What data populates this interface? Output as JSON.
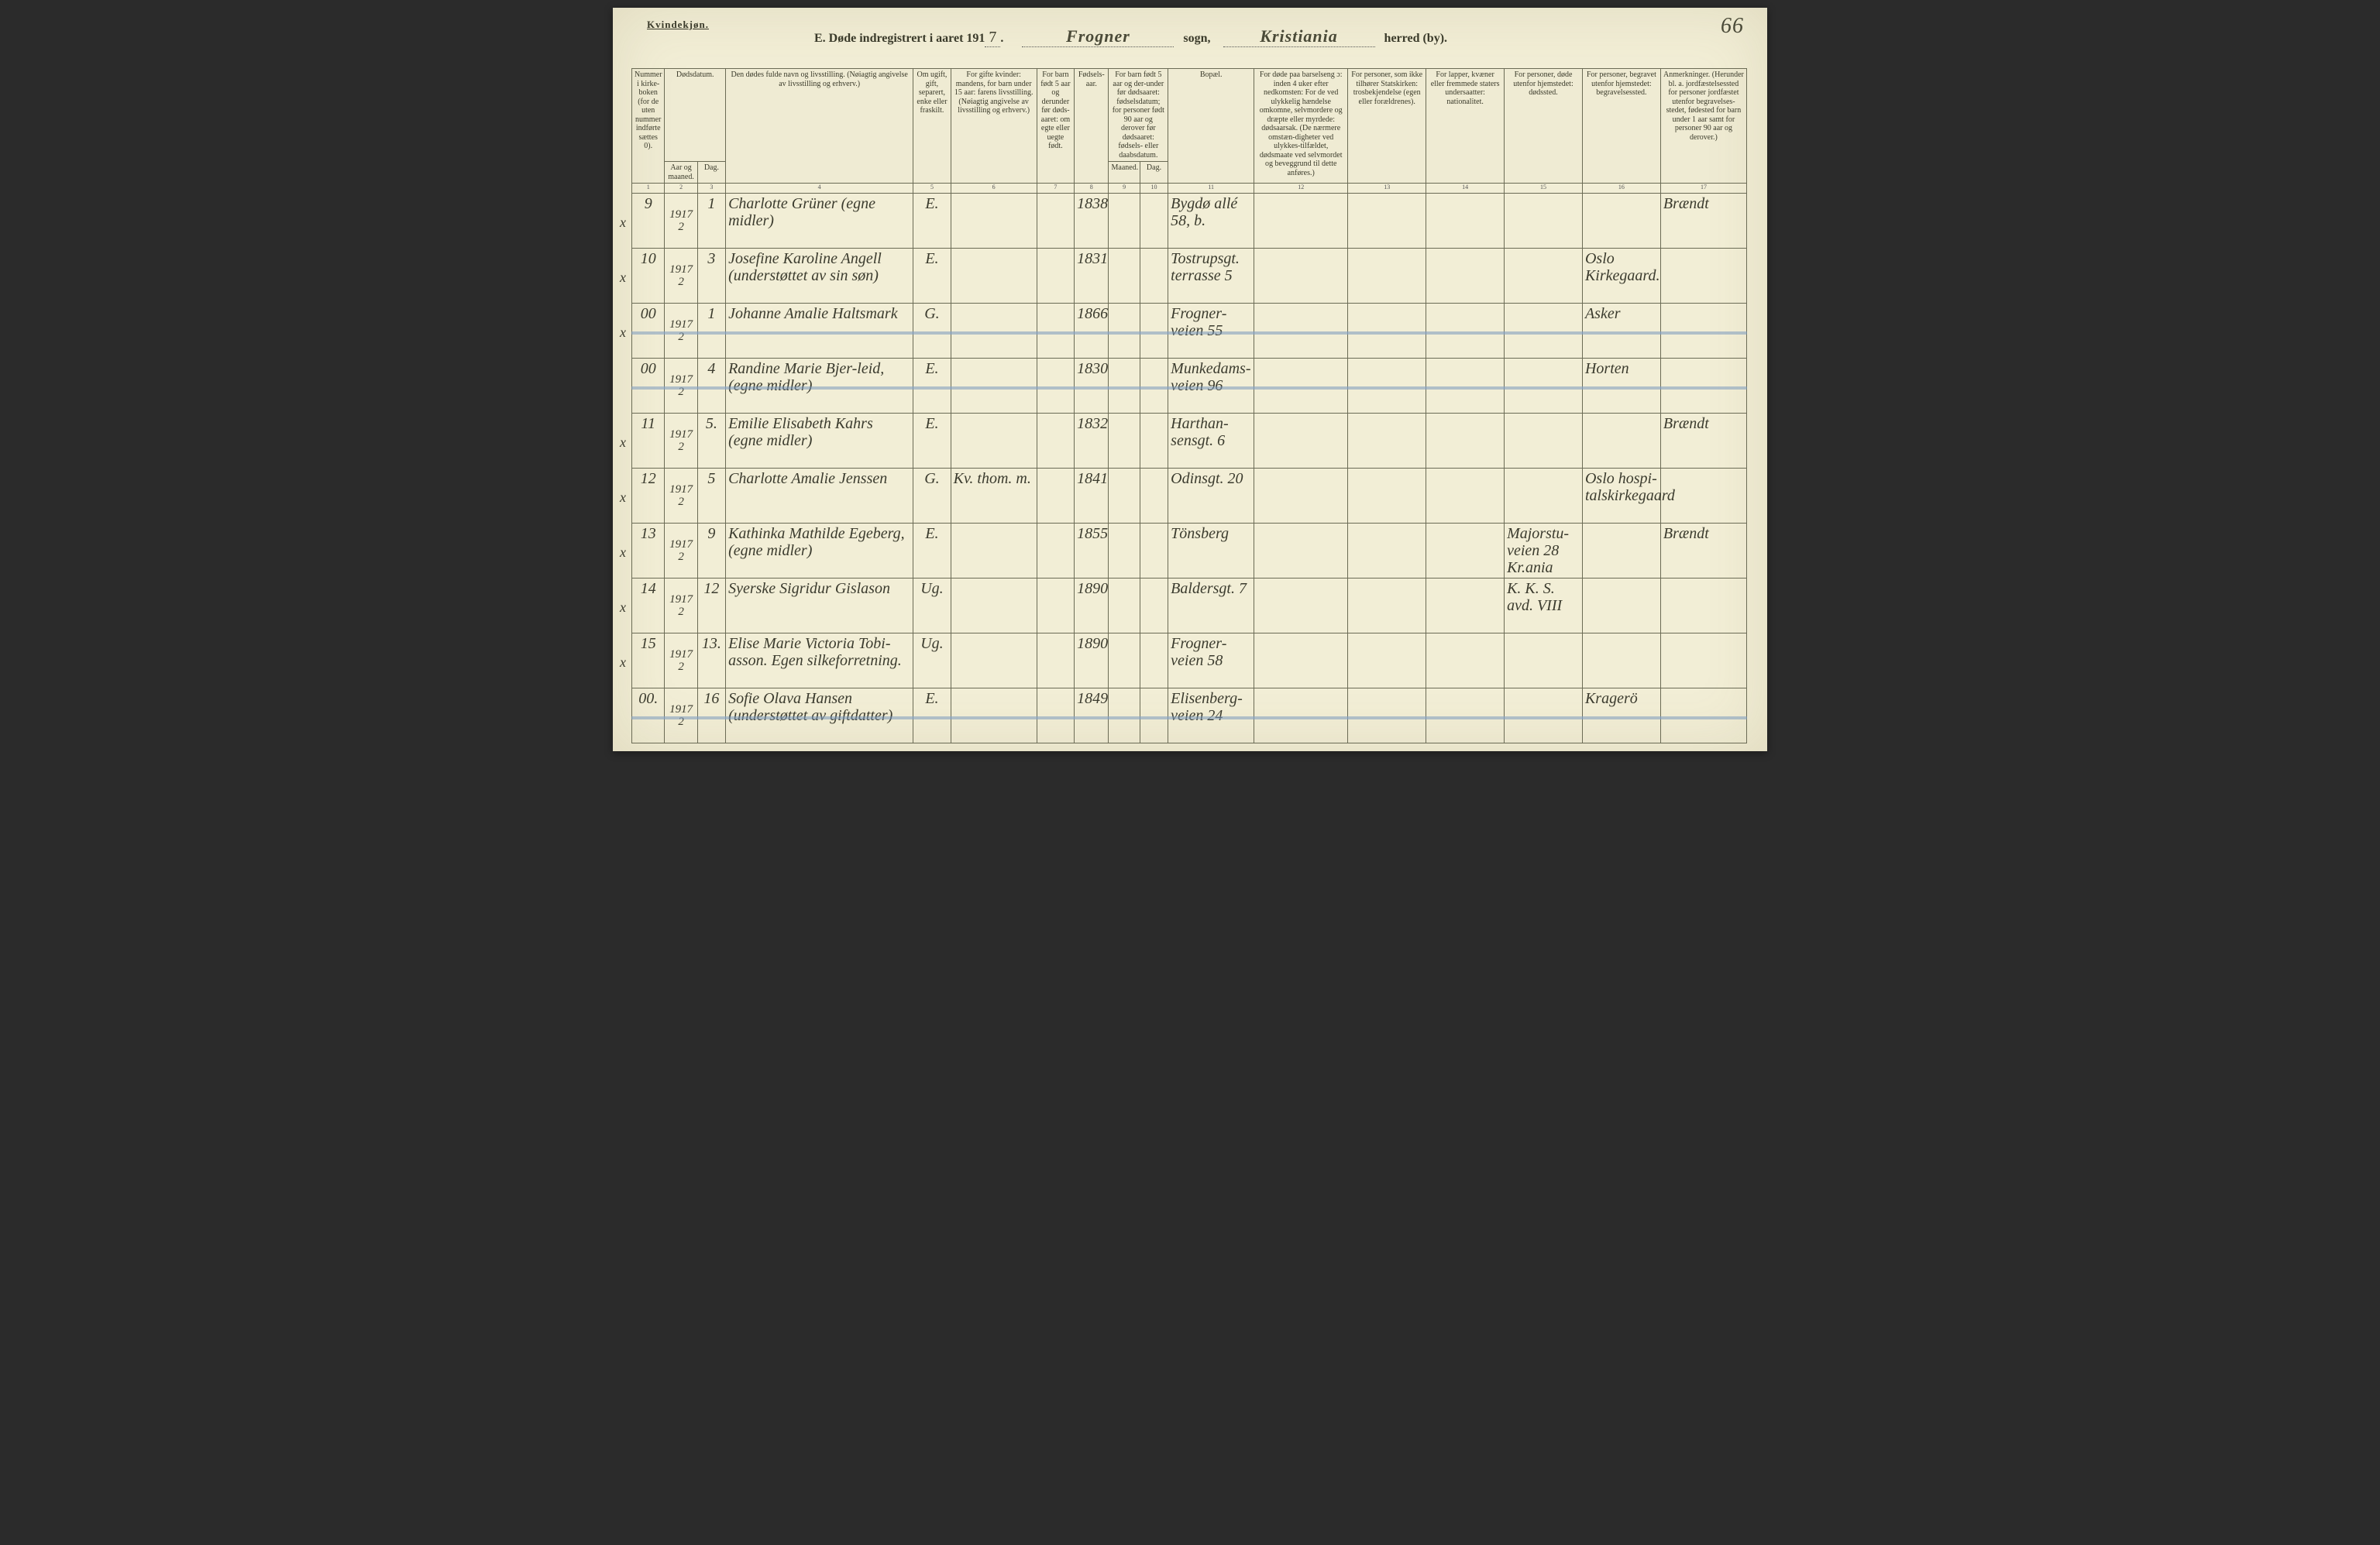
{
  "page_bg": "#f2eed6",
  "ink": "#3a3a2a",
  "cursive_font": "Brush Script MT",
  "header": {
    "gender": "Kvindekjøn.",
    "title_prefix": "E.   Døde indregistrert i aaret 191",
    "year_digit": "7",
    "sogn_label": "sogn,",
    "sogn_value": "Frogner",
    "herred_label": "herred (by).",
    "herred_value": "Kristiania",
    "page_number": "66"
  },
  "columns": {
    "c1": "Nummer i kirke-boken (for de uten nummer indførte sættes 0).",
    "c2_top": "Dødsdatum.",
    "c2": "Aar og maaned.",
    "c3": "Dag.",
    "c4": "Den dødes fulde navn og livsstilling. (Nøiagtig angivelse av livsstilling og erhverv.)",
    "c5": "Om ugift, gift, separert, enke eller fraskilt.",
    "c6": "For gifte kvinder: mandens, for barn under 15 aar: farens livsstilling. (Nøiagtig angivelse av livsstilling og erhverv.)",
    "c7": "For barn født 5 aar og derunder før døds-aaret: om egte eller uegte født.",
    "c8": "Fødsels-aar.",
    "c9_top": "For barn født 5 aar og der-under før dødsaaret: fødselsdatum; for personer født 90 aar og derover før dødsaaret: fødsels- eller daabsdatum.",
    "c9": "Maaned.",
    "c10": "Dag.",
    "c11": "Bopæl.",
    "c12": "For døde paa barselseng ɔ: inden 4 uker efter nedkomsten: For de ved ulykkelig hændelse omkomne, selvmordere og dræpte eller myrdede: dødsaarsak. (De nærmere omstæn-digheter ved ulykkes-tilfældet, dødsmaate ved selvmordet og beveggrund til dette anføres.)",
    "c13": "For personer, som ikke tilhører Statskirken: trosbekjendelse (egen eller forældrenes).",
    "c14": "For lapper, kvæner eller fremmede staters undersaatter: nationalitet.",
    "c15": "For personer, døde utenfor hjemstedet: dødssted.",
    "c16": "For personer, begravet utenfor hjemstedet: begravelsessted.",
    "c17": "Anmerkninger. (Herunder bl. a. jordfæstelsessted for personer jordfæstet utenfor begravelses-stedet, fødested for barn under 1 aar samt for personer 90 aar og derover.)"
  },
  "col_numbers": [
    "1",
    "2",
    "3",
    "4",
    "5",
    "6",
    "7",
    "8",
    "9",
    "10",
    "11",
    "12",
    "13",
    "14",
    "15",
    "16",
    "17"
  ],
  "rows": [
    {
      "mark": "x",
      "num": "9",
      "year": "1917",
      "month": "2",
      "day": "1",
      "name": "Charlotte Grüner (egne midler)",
      "status": "E.",
      "fodselsaar": "1838",
      "bopael": "Bygdø allé 58, b.",
      "c17": "Brændt",
      "strike": false
    },
    {
      "mark": "x",
      "num": "10",
      "year": "1917",
      "month": "2",
      "day": "3",
      "name": "Josefine Karoline Angell (understøttet av sin søn)",
      "status": "E.",
      "fodselsaar": "1831",
      "bopael": "Tostrupsgt. terrasse 5",
      "c16": "Oslo Kirkegaard.",
      "strike": false
    },
    {
      "mark": "x",
      "num": "00",
      "year": "1917",
      "month": "2",
      "day": "1",
      "name": "Johanne Amalie Haltsmark",
      "status": "G.",
      "fodselsaar": "1866",
      "bopael": "Frogner-veien 55",
      "c16": "Asker",
      "strike": true
    },
    {
      "mark": "",
      "num": "00",
      "year": "1917",
      "month": "2",
      "day": "4",
      "name": "Randine Marie Bjer-leid, (egne midler)",
      "status": "E.",
      "fodselsaar": "1830",
      "bopael": "Munkedams-veien 96",
      "c16": "Horten",
      "strike": true
    },
    {
      "mark": "x",
      "num": "11",
      "year": "1917",
      "month": "2",
      "day": "5.",
      "name": "Emilie Elisabeth Kahrs (egne midler)",
      "status": "E.",
      "fodselsaar": "1832",
      "bopael": "Harthan-sensgt. 6",
      "c17": "Brændt",
      "strike": false
    },
    {
      "mark": "x",
      "num": "12",
      "year": "1917",
      "month": "2",
      "day": "5",
      "name": "Charlotte Amalie Jenssen",
      "status": "G.",
      "c6": "Kv. thom. m.",
      "fodselsaar": "1841",
      "bopael": "Odinsgt. 20",
      "c16": "Oslo hospi-talskirkegaard",
      "strike": false
    },
    {
      "mark": "x",
      "num": "13",
      "year": "1917",
      "month": "2",
      "day": "9",
      "name": "Kathinka Mathilde Egeberg, (egne midler)",
      "status": "E.",
      "fodselsaar": "1855",
      "bopael": "Tönsberg",
      "c15": "Majorstu-veien 28 Kr.ania",
      "c17": "Brændt",
      "strike": false
    },
    {
      "mark": "x",
      "num": "14",
      "year": "1917",
      "month": "2",
      "day": "12",
      "name": "Syerske Sigridur Gislason",
      "status": "Ug.",
      "fodselsaar": "1890",
      "bopael": "Baldersgt. 7",
      "c15": "K. K. S. avd. VIII",
      "strike": false
    },
    {
      "mark": "x",
      "num": "15",
      "year": "1917",
      "month": "2",
      "day": "13.",
      "name": "Elise Marie Victoria Tobi-asson. Egen silkeforretning.",
      "status": "Ug.",
      "fodselsaar": "1890",
      "bopael": "Frogner-veien 58",
      "strike": false
    },
    {
      "mark": "",
      "num": "00.",
      "year": "1917",
      "month": "2",
      "day": "16",
      "name": "Sofie Olava Hansen (understøttet av giftdatter)",
      "status": "E.",
      "fodselsaar": "1849",
      "bopael": "Elisenberg-veien 24",
      "c16": "Kragerö",
      "strike": true
    }
  ]
}
